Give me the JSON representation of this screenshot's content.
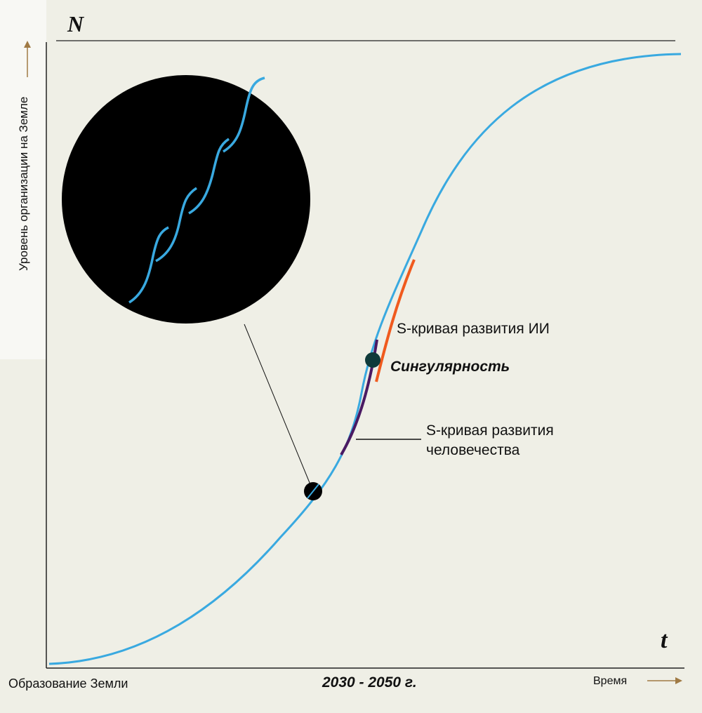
{
  "axes": {
    "y_symbol": "N",
    "x_symbol": "t",
    "y_title": "Уровень организации на Земле",
    "x_start": "Образование Земли",
    "x_mid": "2030 - 2050 г.",
    "x_end": "Время"
  },
  "annotations": {
    "ai_curve": "S-кривая развития ИИ",
    "singularity": "Сингулярность",
    "human_curve_line1": "S-кривая развития",
    "human_curve_line2": "человечества"
  },
  "colors": {
    "background": "#efefe6",
    "main_curve": "#39a9e0",
    "ai_curve": "#f05a1e",
    "human_curve": "#4a1a63",
    "axis_arrow": "#a07a44",
    "inset_background": "#000000"
  },
  "icons": {
    "y_arrow": "arrow-up",
    "x_arrow": "arrow-right",
    "inset": "magnifier-circle"
  }
}
